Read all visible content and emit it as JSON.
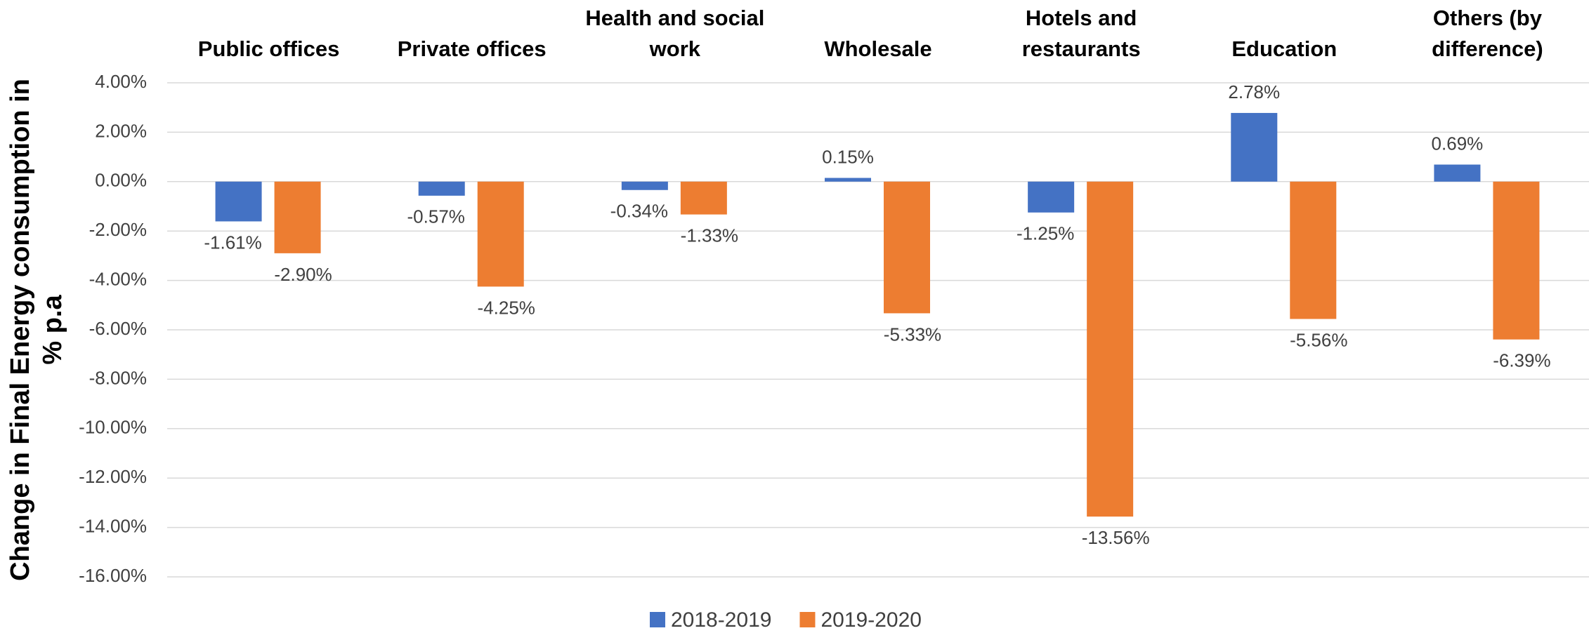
{
  "chart_data": {
    "type": "bar",
    "ylabel": "Change in Final Energy consumption in % p.a",
    "categories": [
      "Public offices",
      "Private offices",
      "Health and social work",
      "Wholesale",
      "Hotels and restaurants",
      "Education",
      "Others (by difference)"
    ],
    "series": [
      {
        "name": "2018-2019",
        "color": "#4472c4",
        "values": [
          -1.61,
          -0.57,
          -0.34,
          0.15,
          -1.25,
          2.78,
          0.69
        ],
        "value_labels": [
          "-1.61%",
          "-0.57%",
          "-0.34%",
          "0.15%",
          "-1.25%",
          "2.78%",
          "0.69%"
        ]
      },
      {
        "name": "2019-2020",
        "color": "#ed7d31",
        "values": [
          -2.9,
          -4.25,
          -1.33,
          -5.33,
          -13.56,
          -5.56,
          -6.39
        ],
        "value_labels": [
          "-2.90%",
          "-4.25%",
          "-1.33%",
          "-5.33%",
          "-13.56%",
          "-5.56%",
          "-6.39%"
        ]
      }
    ],
    "ylim": [
      -16,
      4
    ],
    "yticks": [
      {
        "value": 4,
        "label": "4.00%"
      },
      {
        "value": 2,
        "label": "2.00%"
      },
      {
        "value": 0,
        "label": "0.00%"
      },
      {
        "value": -2,
        "label": "-2.00%"
      },
      {
        "value": -4,
        "label": "-4.00%"
      },
      {
        "value": -6,
        "label": "-6.00%"
      },
      {
        "value": -8,
        "label": "-8.00%"
      },
      {
        "value": -10,
        "label": "-10.00%"
      },
      {
        "value": -12,
        "label": "-12.00%"
      },
      {
        "value": -14,
        "label": "-14.00%"
      },
      {
        "value": -16,
        "label": "-16.00%"
      }
    ],
    "grid": true,
    "legend": "bottom"
  }
}
